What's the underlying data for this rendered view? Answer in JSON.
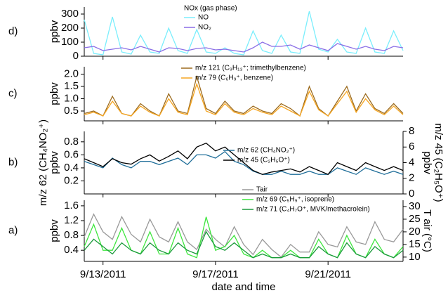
{
  "chart_data": [
    {
      "type": "line",
      "label": "d)",
      "ylabel": [
        "ppbv"
      ],
      "legend_title": "NOx (gas phase)",
      "x": [
        "2011-09-12 08:00",
        "2011-09-12 16:00",
        "2011-09-13 00:00",
        "2011-09-13 08:00",
        "2011-09-13 16:00",
        "2011-09-14 00:00",
        "2011-09-14 08:00",
        "2011-09-14 16:00",
        "2011-09-15 00:00",
        "2011-09-15 08:00",
        "2011-09-15 16:00",
        "2011-09-16 00:00",
        "2011-09-16 08:00",
        "2011-09-16 16:00",
        "2011-09-17 00:00",
        "2011-09-17 08:00",
        "2011-09-17 16:00",
        "2011-09-18 00:00",
        "2011-09-18 08:00",
        "2011-09-18 16:00",
        "2011-09-19 00:00",
        "2011-09-19 08:00",
        "2011-09-19 16:00",
        "2011-09-20 00:00",
        "2011-09-20 08:00",
        "2011-09-20 16:00",
        "2011-09-21 00:00",
        "2011-09-21 08:00",
        "2011-09-21 16:00",
        "2011-09-22 00:00",
        "2011-09-22 08:00",
        "2011-09-22 16:00",
        "2011-09-23 00:00",
        "2011-09-23 08:00",
        "2011-09-23 16:00"
      ],
      "xlim": [
        "2011-09-12 08:00",
        "2011-09-23 16:00"
      ],
      "ylim": [
        0,
        350
      ],
      "yticks": [
        0,
        100,
        200,
        300
      ],
      "series": [
        {
          "name": "NO",
          "color": "#7aeefc",
          "values": [
            260,
            20,
            10,
            280,
            30,
            15,
            150,
            30,
            20,
            200,
            40,
            20,
            190,
            30,
            20,
            60,
            20,
            10,
            180,
            40,
            20,
            150,
            30,
            20,
            320,
            50,
            30,
            120,
            30,
            20,
            200,
            30,
            20,
            180,
            40
          ]
        },
        {
          "name": "NO₂",
          "color": "#8a6ee6",
          "values": [
            60,
            70,
            40,
            50,
            60,
            45,
            70,
            50,
            30,
            60,
            55,
            40,
            55,
            60,
            45,
            50,
            40,
            30,
            60,
            100,
            70,
            70,
            80,
            50,
            80,
            60,
            40,
            90,
            70,
            50,
            70,
            50,
            40,
            70,
            60
          ]
        }
      ]
    },
    {
      "type": "line",
      "label": "c)",
      "ylabel": [
        "ppbv"
      ],
      "x": [
        "2011-09-12 08:00",
        "2011-09-12 16:00",
        "2011-09-13 00:00",
        "2011-09-13 08:00",
        "2011-09-13 16:00",
        "2011-09-14 00:00",
        "2011-09-14 08:00",
        "2011-09-14 16:00",
        "2011-09-15 00:00",
        "2011-09-15 08:00",
        "2011-09-15 16:00",
        "2011-09-16 00:00",
        "2011-09-16 08:00",
        "2011-09-16 16:00",
        "2011-09-17 00:00",
        "2011-09-17 08:00",
        "2011-09-17 16:00",
        "2011-09-18 00:00",
        "2011-09-18 08:00",
        "2011-09-18 16:00",
        "2011-09-19 00:00",
        "2011-09-19 08:00",
        "2011-09-19 16:00",
        "2011-09-20 00:00",
        "2011-09-20 08:00",
        "2011-09-20 16:00",
        "2011-09-21 00:00",
        "2011-09-21 08:00",
        "2011-09-21 16:00",
        "2011-09-22 00:00",
        "2011-09-22 08:00",
        "2011-09-22 16:00",
        "2011-09-23 00:00",
        "2011-09-23 08:00",
        "2011-09-23 16:00"
      ],
      "xlim": [
        "2011-09-12 08:00",
        "2011-09-23 16:00"
      ],
      "ylim": [
        0.1,
        2.3
      ],
      "yticks": [
        0.5,
        {
          "value": 1,
          "label": "1.0"
        },
        1.5,
        {
          "value": 2,
          "label": "2.0"
        }
      ],
      "series": [
        {
          "name": "m/z 121 (C₉H₁₃⁺; trimethylbenzene)",
          "color": "#9c6b1e",
          "values": [
            0.4,
            0.5,
            0.3,
            1.1,
            0.4,
            0.3,
            0.8,
            0.5,
            0.3,
            1.2,
            0.5,
            0.4,
            1.9,
            0.6,
            0.4,
            0.9,
            0.5,
            0.4,
            0.7,
            0.5,
            0.4,
            0.8,
            0.6,
            0.3,
            1.5,
            0.6,
            0.3,
            0.9,
            1.5,
            0.5,
            1.2,
            0.6,
            0.4,
            0.8,
            0.4
          ]
        },
        {
          "name": "m/z 79 (C₆H₉⁺, benzene)",
          "color": "#f5a623",
          "values": [
            0.35,
            0.45,
            0.3,
            0.9,
            0.4,
            0.3,
            0.7,
            0.45,
            0.3,
            1.0,
            0.45,
            0.35,
            1.6,
            0.5,
            0.35,
            0.8,
            0.45,
            0.35,
            0.6,
            0.45,
            0.35,
            0.7,
            0.5,
            0.3,
            1.3,
            0.55,
            0.3,
            0.8,
            1.3,
            0.45,
            1.0,
            0.55,
            0.35,
            0.7,
            0.35
          ]
        }
      ]
    },
    {
      "type": "line",
      "label": "b)",
      "ylabel": [
        "m/z 62 (CH₄NO₂⁺)",
        "ppbv"
      ],
      "y2label": [
        "m/z 45 (C₂H₅O⁺)",
        "ppbv"
      ],
      "ylabel_color": "#1f6e99",
      "x": [
        "2011-09-12 08:00",
        "2011-09-12 16:00",
        "2011-09-13 00:00",
        "2011-09-13 08:00",
        "2011-09-13 16:00",
        "2011-09-14 00:00",
        "2011-09-14 08:00",
        "2011-09-14 16:00",
        "2011-09-15 00:00",
        "2011-09-15 08:00",
        "2011-09-15 16:00",
        "2011-09-16 00:00",
        "2011-09-16 08:00",
        "2011-09-16 16:00",
        "2011-09-17 00:00",
        "2011-09-17 08:00",
        "2011-09-17 16:00",
        "2011-09-18 00:00",
        "2011-09-18 08:00",
        "2011-09-18 16:00",
        "2011-09-19 00:00",
        "2011-09-19 08:00",
        "2011-09-19 16:00",
        "2011-09-20 00:00",
        "2011-09-20 08:00",
        "2011-09-20 16:00",
        "2011-09-21 00:00",
        "2011-09-21 08:00",
        "2011-09-21 16:00",
        "2011-09-22 00:00",
        "2011-09-22 08:00",
        "2011-09-22 16:00",
        "2011-09-23 00:00",
        "2011-09-23 08:00",
        "2011-09-23 16:00"
      ],
      "xlim": [
        "2011-09-12 08:00",
        "2011-09-23 16:00"
      ],
      "ylim": [
        0,
        0.96
      ],
      "yticks": [
        0.2,
        0.4,
        0.6,
        0.8
      ],
      "y2lim": [
        0,
        8
      ],
      "y2ticks": [
        0,
        2,
        4,
        6,
        8
      ],
      "series": [
        {
          "name": "m/z 62 (CH₄NO₂⁺)",
          "color": "#1f6e99",
          "values": [
            0.5,
            0.45,
            0.4,
            0.55,
            0.45,
            0.4,
            0.5,
            0.5,
            0.45,
            0.5,
            0.55,
            0.45,
            0.6,
            0.6,
            0.55,
            0.65,
            0.5,
            0.45,
            0.35,
            0.3,
            0.3,
            0.35,
            0.3,
            0.3,
            0.35,
            0.3,
            0.3,
            0.4,
            0.35,
            0.3,
            0.4,
            0.35,
            0.3,
            0.35,
            0.3
          ]
        },
        {
          "name": "m/z 45 (C₂H₅O⁺)",
          "color": "#000000",
          "axis": "y2",
          "values": [
            4.5,
            4,
            3.5,
            4.5,
            4,
            3.8,
            4.5,
            5,
            4.2,
            4.8,
            5.5,
            4.5,
            6,
            6.5,
            5.5,
            6,
            5,
            4,
            3,
            2.5,
            2.8,
            3,
            3.2,
            2.8,
            3.5,
            3,
            2.5,
            4,
            3.5,
            3,
            4,
            3.5,
            3,
            3.5,
            3
          ]
        }
      ]
    },
    {
      "type": "line",
      "label": "a)",
      "ylabel": [
        "ppbv"
      ],
      "y2label": [
        "T air (°C)"
      ],
      "xlabel": "date and time",
      "x": [
        "2011-09-12 08:00",
        "2011-09-12 16:00",
        "2011-09-13 00:00",
        "2011-09-13 08:00",
        "2011-09-13 16:00",
        "2011-09-14 00:00",
        "2011-09-14 08:00",
        "2011-09-14 16:00",
        "2011-09-15 00:00",
        "2011-09-15 08:00",
        "2011-09-15 16:00",
        "2011-09-16 00:00",
        "2011-09-16 08:00",
        "2011-09-16 16:00",
        "2011-09-17 00:00",
        "2011-09-17 08:00",
        "2011-09-17 16:00",
        "2011-09-18 00:00",
        "2011-09-18 08:00",
        "2011-09-18 16:00",
        "2011-09-19 00:00",
        "2011-09-19 08:00",
        "2011-09-19 16:00",
        "2011-09-20 00:00",
        "2011-09-20 08:00",
        "2011-09-20 16:00",
        "2011-09-21 00:00",
        "2011-09-21 08:00",
        "2011-09-21 16:00",
        "2011-09-22 00:00",
        "2011-09-22 08:00",
        "2011-09-22 16:00",
        "2011-09-23 00:00",
        "2011-09-23 08:00",
        "2011-09-23 16:00"
      ],
      "xlim": [
        "2011-09-12 08:00",
        "2011-09-23 16:00"
      ],
      "xticks": [
        {
          "value": "2011-09-13 00:00",
          "label": "9/13/2011"
        },
        {
          "value": "2011-09-17 00:00",
          "label": "9/17/2011"
        },
        {
          "value": "2011-09-21 00:00",
          "label": "9/21/2011"
        }
      ],
      "ylim": [
        0.1,
        1.75
      ],
      "yticks": [
        0.4,
        0.8,
        1.2,
        1.6
      ],
      "y2lim": [
        8.3,
        32.5
      ],
      "y2ticks": [
        10,
        15,
        20,
        25,
        30
      ],
      "series": [
        {
          "name": "Tair",
          "color": "#999999",
          "axis": "y2",
          "values": [
            18,
            27,
            20,
            17,
            26,
            19,
            16,
            25,
            18,
            16,
            24,
            16,
            13,
            21,
            17,
            14,
            22,
            15,
            11,
            17,
            13,
            10,
            15,
            12,
            12,
            20,
            15,
            14,
            22,
            16,
            15,
            24,
            17,
            16,
            21
          ]
        },
        {
          "name": "m/z 69 (C₅H₉⁺, isoprene)",
          "color": "#3ee63e",
          "values": [
            0.5,
            1.1,
            0.4,
            0.4,
            1.0,
            0.4,
            0.3,
            0.9,
            0.3,
            0.3,
            1.0,
            0.3,
            0.2,
            1.3,
            0.4,
            0.5,
            0.8,
            0.3,
            0.2,
            0.4,
            0.2,
            0.2,
            0.4,
            0.2,
            0.2,
            0.7,
            0.3,
            0.2,
            0.8,
            0.3,
            0.2,
            0.7,
            0.3,
            0.2,
            0.5
          ]
        },
        {
          "name": "m/z 71 (C₄H₇O⁺, MVK/methacrolein)",
          "color": "#1a9a3a",
          "values": [
            0.4,
            0.7,
            0.5,
            0.3,
            0.6,
            0.4,
            0.3,
            0.6,
            0.4,
            0.3,
            0.6,
            0.4,
            0.3,
            0.9,
            0.5,
            0.4,
            0.6,
            0.4,
            0.2,
            0.3,
            0.2,
            0.2,
            0.3,
            0.2,
            0.2,
            0.5,
            0.3,
            0.2,
            0.6,
            0.3,
            0.2,
            0.5,
            0.3,
            0.2,
            0.4
          ]
        }
      ]
    }
  ]
}
